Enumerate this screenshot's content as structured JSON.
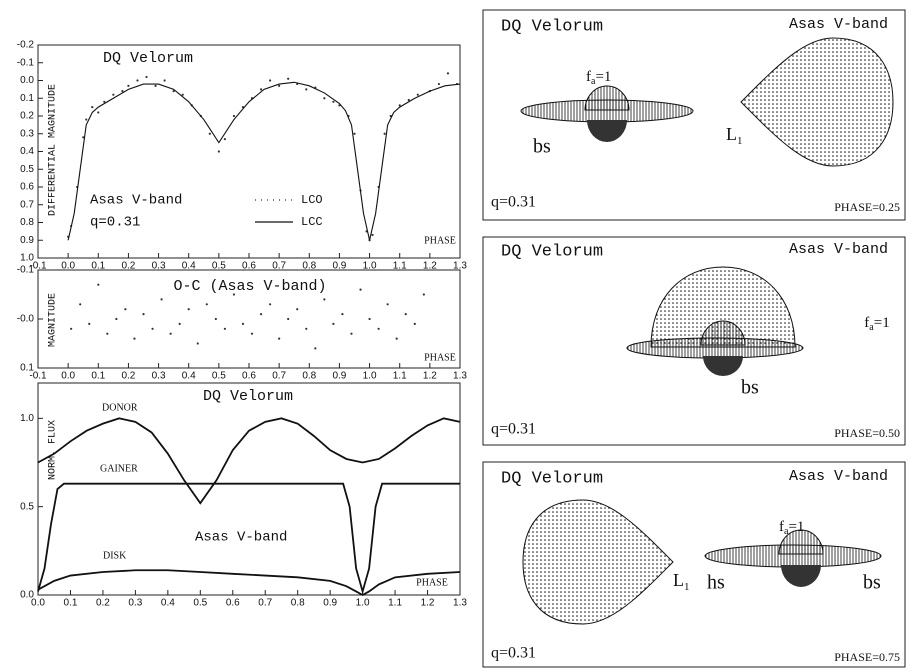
{
  "chart_data": [
    {
      "type": "line",
      "title": "DQ Velorum",
      "ylabel": "DIFFERENTIAL MAGNITUDE",
      "xlabel": "PHASE",
      "annotations": [
        "Asas V-band",
        "q=0.31"
      ],
      "xlim": [
        -0.1,
        1.3
      ],
      "ylim": [
        1.0,
        -0.2
      ],
      "xticks": [
        -0.1,
        {
          "value": 0,
          "label": "0.0"
        },
        0.1,
        0.2,
        0.3,
        0.4,
        0.5,
        0.6,
        0.7,
        0.8,
        0.9,
        {
          "value": 1,
          "label": "1.0"
        },
        1.1,
        1.2,
        1.3
      ],
      "yticks": [
        -0.2,
        -0.1,
        {
          "value": 0,
          "label": "0.0"
        },
        0.1,
        0.2,
        0.3,
        0.4,
        0.5,
        0.6,
        0.7,
        0.8,
        0.9,
        {
          "value": 1,
          "label": "1.0"
        }
      ],
      "series": [
        {
          "name": "LCO",
          "style": "dots",
          "color": "#333333",
          "x": [
            0.0,
            0.01,
            0.03,
            0.05,
            0.06,
            0.08,
            0.1,
            0.12,
            0.15,
            0.18,
            0.2,
            0.23,
            0.26,
            0.29,
            0.32,
            0.35,
            0.38,
            0.41,
            0.44,
            0.47,
            0.5,
            0.52,
            0.55,
            0.58,
            0.61,
            0.64,
            0.67,
            0.7,
            0.73,
            0.76,
            0.79,
            0.82,
            0.85,
            0.88,
            0.9,
            0.93,
            0.95,
            0.97,
            0.99,
            1.0,
            1.01,
            1.03,
            1.05,
            1.07,
            1.1,
            1.13,
            1.16,
            1.2,
            1.23,
            1.26,
            1.29
          ],
          "values": [
            0.88,
            0.82,
            0.6,
            0.32,
            0.22,
            0.15,
            0.18,
            0.12,
            0.08,
            0.06,
            0.03,
            0.0,
            -0.02,
            0.03,
            0.0,
            0.06,
            0.08,
            0.14,
            0.2,
            0.3,
            0.4,
            0.33,
            0.2,
            0.15,
            0.1,
            0.05,
            0.0,
            0.03,
            -0.01,
            0.02,
            0.05,
            0.04,
            0.1,
            0.12,
            0.14,
            0.2,
            0.3,
            0.62,
            0.85,
            0.9,
            0.87,
            0.6,
            0.3,
            0.2,
            0.14,
            0.11,
            0.08,
            0.06,
            0.02,
            -0.04,
            0.02
          ]
        },
        {
          "name": "LCC",
          "style": "line",
          "color": "#111111",
          "x": [
            0.0,
            0.02,
            0.04,
            0.06,
            0.08,
            0.1,
            0.15,
            0.2,
            0.25,
            0.3,
            0.35,
            0.4,
            0.45,
            0.5,
            0.55,
            0.6,
            0.65,
            0.7,
            0.75,
            0.8,
            0.85,
            0.9,
            0.92,
            0.94,
            0.96,
            0.98,
            1.0,
            1.02,
            1.04,
            1.06,
            1.08,
            1.1,
            1.15,
            1.2,
            1.25,
            1.3
          ],
          "values": [
            0.9,
            0.75,
            0.5,
            0.25,
            0.18,
            0.15,
            0.1,
            0.05,
            0.02,
            0.02,
            0.05,
            0.12,
            0.22,
            0.35,
            0.22,
            0.12,
            0.05,
            0.02,
            0.01,
            0.03,
            0.07,
            0.13,
            0.17,
            0.25,
            0.5,
            0.75,
            0.9,
            0.75,
            0.5,
            0.25,
            0.18,
            0.15,
            0.1,
            0.06,
            0.03,
            0.02
          ]
        }
      ]
    },
    {
      "type": "scatter",
      "title": "O-C (Asas V-band)",
      "ylabel": "MAGNITUDE",
      "xlabel": "PHASE",
      "xlim": [
        -0.1,
        1.3
      ],
      "ylim": [
        0.1,
        -0.1
      ],
      "xticks": [
        -0.1,
        {
          "value": 0,
          "label": "0.0"
        },
        0.1,
        0.2,
        0.3,
        0.4,
        0.5,
        0.6,
        0.7,
        0.8,
        0.9,
        {
          "value": 1,
          "label": "1.0"
        },
        1.1,
        1.2,
        1.3
      ],
      "yticks": [
        -0.1,
        {
          "value": 0,
          "label": "-0.0"
        },
        0.1
      ],
      "series": [
        {
          "style": "dots",
          "color": "#333333",
          "x": [
            0.01,
            0.04,
            0.07,
            0.1,
            0.13,
            0.16,
            0.19,
            0.22,
            0.25,
            0.28,
            0.31,
            0.34,
            0.37,
            0.4,
            0.43,
            0.46,
            0.49,
            0.52,
            0.55,
            0.58,
            0.61,
            0.64,
            0.67,
            0.7,
            0.73,
            0.76,
            0.79,
            0.82,
            0.85,
            0.88,
            0.91,
            0.94,
            0.97,
            1.0,
            1.03,
            1.06,
            1.09,
            1.12,
            1.15,
            1.18
          ],
          "values": [
            0.02,
            -0.03,
            0.01,
            -0.07,
            0.03,
            0.0,
            -0.02,
            0.04,
            -0.01,
            0.02,
            -0.04,
            0.03,
            0.01,
            -0.02,
            0.05,
            -0.03,
            0.0,
            0.02,
            -0.05,
            0.01,
            0.03,
            -0.01,
            -0.03,
            0.04,
            0.0,
            -0.02,
            0.02,
            0.06,
            -0.04,
            0.01,
            -0.01,
            0.03,
            -0.06,
            0.0,
            0.02,
            -0.03,
            0.04,
            -0.01,
            0.01,
            -0.05
          ]
        }
      ]
    },
    {
      "type": "line",
      "title": "DQ Velorum",
      "ylabel": "NORM. FLUX",
      "xlabel": "PHASE",
      "annotations": [
        "Asas V-band"
      ],
      "xlim": [
        0,
        1.3
      ],
      "ylim": [
        0,
        1.2
      ],
      "xticks": [
        {
          "value": 0,
          "label": "0.0"
        },
        0.1,
        0.2,
        0.3,
        0.4,
        0.5,
        0.6,
        0.7,
        0.8,
        0.9,
        {
          "value": 1,
          "label": "1.0"
        },
        1.1,
        1.2,
        1.3
      ],
      "yticks": [
        {
          "value": 0,
          "label": "0.0"
        },
        0.5,
        {
          "value": 1,
          "label": "1.0"
        }
      ],
      "series": [
        {
          "name": "DONOR",
          "style": "line",
          "color": "#111111",
          "x": [
            0,
            0.05,
            0.1,
            0.15,
            0.2,
            0.25,
            0.3,
            0.35,
            0.4,
            0.45,
            0.5,
            0.55,
            0.6,
            0.65,
            0.7,
            0.75,
            0.8,
            0.85,
            0.9,
            0.95,
            1.0,
            1.05,
            1.1,
            1.15,
            1.2,
            1.25,
            1.3
          ],
          "values": [
            0.75,
            0.8,
            0.87,
            0.93,
            0.97,
            1.0,
            0.98,
            0.92,
            0.8,
            0.65,
            0.52,
            0.65,
            0.82,
            0.93,
            0.98,
            1.0,
            0.97,
            0.9,
            0.82,
            0.77,
            0.75,
            0.77,
            0.83,
            0.9,
            0.96,
            1.0,
            0.98
          ]
        },
        {
          "name": "GAINER",
          "style": "line",
          "color": "#111111",
          "x": [
            0,
            0.02,
            0.04,
            0.06,
            0.08,
            0.94,
            0.96,
            0.98,
            1.0,
            1.02,
            1.04,
            1.06,
            1.3
          ],
          "values": [
            0.02,
            0.15,
            0.4,
            0.6,
            0.63,
            0.63,
            0.5,
            0.15,
            0.02,
            0.15,
            0.5,
            0.63,
            0.63
          ]
        },
        {
          "name": "DISK",
          "style": "line",
          "color": "#111111",
          "x": [
            0,
            0.05,
            0.1,
            0.2,
            0.3,
            0.4,
            0.5,
            0.6,
            0.7,
            0.8,
            0.9,
            0.95,
            0.98,
            1.0,
            1.02,
            1.05,
            1.1,
            1.2,
            1.3
          ],
          "values": [
            0.03,
            0.08,
            0.11,
            0.13,
            0.14,
            0.14,
            0.13,
            0.12,
            0.11,
            0.1,
            0.08,
            0.05,
            0.02,
            0.0,
            0.02,
            0.06,
            0.1,
            0.12,
            0.13
          ]
        }
      ]
    }
  ],
  "models": [
    {
      "title": "DQ Velorum",
      "band": "Asas V-band",
      "fa": {
        "base": "f",
        "sub": "a",
        "rest": "=1"
      },
      "bs": "bs",
      "l1": {
        "base": "L",
        "sub": "1"
      },
      "q": "q=0.31",
      "phase": "PHASE=0.25"
    },
    {
      "title": "DQ Velorum",
      "band": "Asas V-band",
      "fa": {
        "base": "f",
        "sub": "a",
        "rest": "=1"
      },
      "bs": "bs",
      "q": "q=0.31",
      "phase": "PHASE=0.50"
    },
    {
      "title": "DQ Velorum",
      "band": "Asas V-band",
      "fa": {
        "base": "f",
        "sub": "a",
        "rest": "=1"
      },
      "l1": {
        "base": "L",
        "sub": "1"
      },
      "hs": "hs",
      "bs": "bs",
      "q": "q=0.31",
      "phase": "PHASE=0.75"
    }
  ]
}
